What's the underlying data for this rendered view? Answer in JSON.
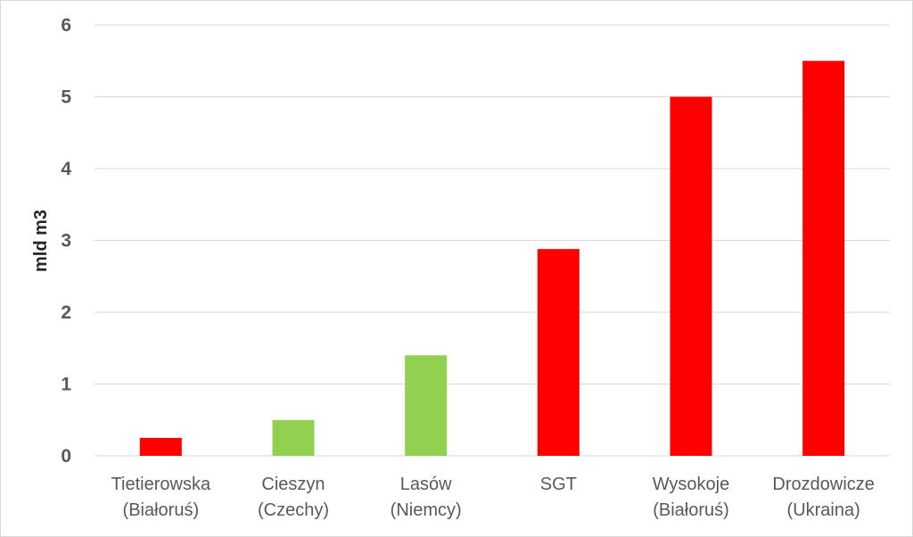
{
  "chart_data": {
    "type": "bar",
    "categories": [
      [
        "Tietierowska",
        "(Białoruś)"
      ],
      [
        "Cieszyn",
        "(Czechy)"
      ],
      [
        "Lasów",
        "(Niemcy)"
      ],
      [
        "SGT"
      ],
      [
        "Wysokoje",
        "(Białoruś)"
      ],
      [
        "Drozdowicze",
        "(Ukraina)"
      ]
    ],
    "values": [
      0.25,
      0.5,
      1.4,
      2.88,
      5.0,
      5.5
    ],
    "bar_colors": [
      "#ff0000",
      "#92d050",
      "#92d050",
      "#ff0000",
      "#ff0000",
      "#ff0000"
    ],
    "ylabel": "mld m3",
    "ylim": [
      0,
      6
    ],
    "yticks": [
      "0",
      "1",
      "2",
      "3",
      "4",
      "5",
      "6"
    ],
    "grid": true,
    "grid_color": "#d9d9d9"
  }
}
